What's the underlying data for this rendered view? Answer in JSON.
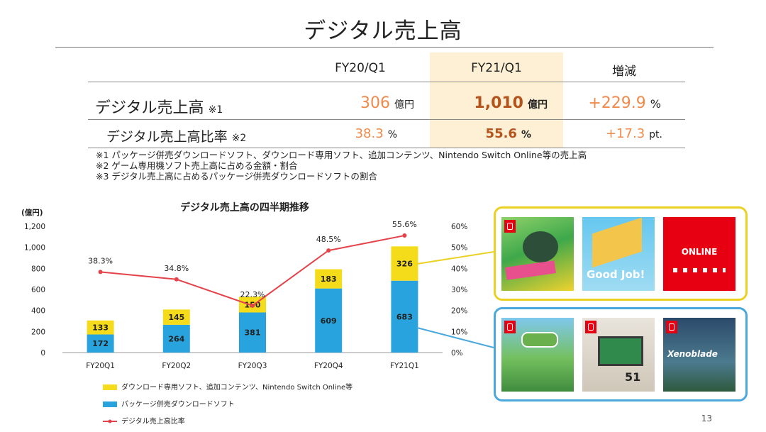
{
  "page": {
    "title": "デジタル売上高",
    "page_number": "13"
  },
  "table": {
    "headers": [
      "FY20/Q1",
      "FY21/Q1",
      "増減"
    ],
    "rows": [
      {
        "label": "デジタル売上高",
        "note": "※1",
        "fy20": "306",
        "fy20_unit": "億円",
        "fy21": "1,010",
        "fy21_unit": "億円",
        "change": "+229.9",
        "change_unit": "%"
      },
      {
        "label": "デジタル売上高比率",
        "note": "※2",
        "fy20": "38.3",
        "fy20_unit": "%",
        "fy21": "55.6",
        "fy21_unit": "%",
        "change": "+17.3",
        "change_unit": "pt."
      }
    ]
  },
  "notes": [
    "※1 パッケージ併売ダウンロードソフト、ダウンロード専用ソフト、追加コンテンツ、Nintendo Switch Online等の売上高",
    "※2 ゲーム専用機ソフト売上高に占める金額・割合",
    "※3 デジタル売上高に占めるパッケージ併売ダウンロードソフトの割合"
  ],
  "chart_data": {
    "type": "bar",
    "title": "デジタル売上高の四半期推移",
    "ylabel": "(億円)",
    "ylim": [
      0,
      1200
    ],
    "yticks": [
      "0",
      "200",
      "400",
      "600",
      "800",
      "1,000",
      "1,200"
    ],
    "y2lim": [
      0,
      60
    ],
    "y2ticks": [
      "0%",
      "10%",
      "20%",
      "30%",
      "40%",
      "50%",
      "60%"
    ],
    "categories": [
      "FY20Q1",
      "FY20Q2",
      "FY20Q3",
      "FY20Q4",
      "FY21Q1"
    ],
    "series": [
      {
        "name": "パッケージ併売ダウンロードソフト",
        "kind": "stacked-bar",
        "color": "#29a3dd",
        "values": [
          172,
          264,
          381,
          609,
          683
        ]
      },
      {
        "name": "ダウンロード専用ソフト、追加コンテンツ、Nintendo Switch Online等",
        "kind": "stacked-bar",
        "color": "#f5dc1a",
        "values": [
          133,
          145,
          150,
          183,
          326
        ]
      },
      {
        "name": "デジタル売上高比率",
        "kind": "line",
        "axis": "right",
        "color": "#e5434b",
        "values": [
          38.3,
          34.8,
          22.3,
          48.5,
          55.6
        ],
        "labels": [
          "38.3%",
          "34.8%",
          "22.3%",
          "48.5%",
          "55.6%"
        ]
      }
    ],
    "legend": [
      "ダウンロード専用ソフト、追加コンテンツ、Nintendo Switch Online等",
      "パッケージ併売ダウンロードソフト",
      "デジタル売上高比率"
    ],
    "grid": false
  },
  "images": {
    "top_box_color": "#ecd125",
    "bottom_box_color": "#4aa8dc",
    "top_tiles": [
      "pokemon-mystery-dungeon-cover-icon",
      "good-job-cover-icon",
      "nintendo-switch-online-banner-icon"
    ],
    "top_online_text": "ONLINE",
    "bottom_tiles": [
      "animal-crossing-cover-icon",
      "clubhouse-games-51-cover-icon",
      "xenoblade-cover-icon"
    ],
    "tile_texts": {
      "good_job": "Good Job!",
      "clubhouse": "51",
      "xenoblade": "Xenoblade"
    }
  }
}
